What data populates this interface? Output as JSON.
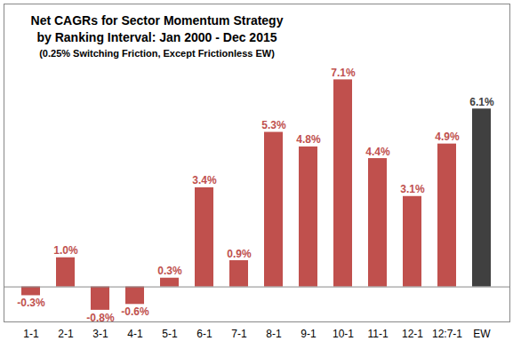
{
  "chart_data": {
    "type": "bar",
    "title": "Net CAGRs for Sector Momentum Strategy\nby Ranking Interval: Jan 2000 - Dec 2015",
    "subtitle": "(0.25% Switching Friction, Except Frictionless EW)",
    "categories": [
      "1-1",
      "2-1",
      "3-1",
      "4-1",
      "5-1",
      "6-1",
      "7-1",
      "8-1",
      "9-1",
      "10-1",
      "11-1",
      "12-1",
      "12:7-1",
      "EW"
    ],
    "values": [
      -0.3,
      1.0,
      -0.8,
      -0.6,
      0.3,
      3.4,
      0.9,
      5.3,
      4.8,
      7.1,
      4.4,
      3.1,
      4.9,
      6.1
    ],
    "value_labels": [
      "-0.3%",
      "1.0%",
      "-0.8%",
      "-0.6%",
      "0.3%",
      "3.4%",
      "0.9%",
      "5.3%",
      "4.8%",
      "7.1%",
      "4.4%",
      "3.1%",
      "4.9%",
      "6.1%"
    ],
    "colors": [
      "#c0504d",
      "#c0504d",
      "#c0504d",
      "#c0504d",
      "#c0504d",
      "#c0504d",
      "#c0504d",
      "#c0504d",
      "#c0504d",
      "#c0504d",
      "#c0504d",
      "#c0504d",
      "#c0504d",
      "#404040"
    ],
    "data_labels": true,
    "tick_labels": "x",
    "grid": false,
    "ylim": [
      -1.2,
      9.7
    ]
  }
}
